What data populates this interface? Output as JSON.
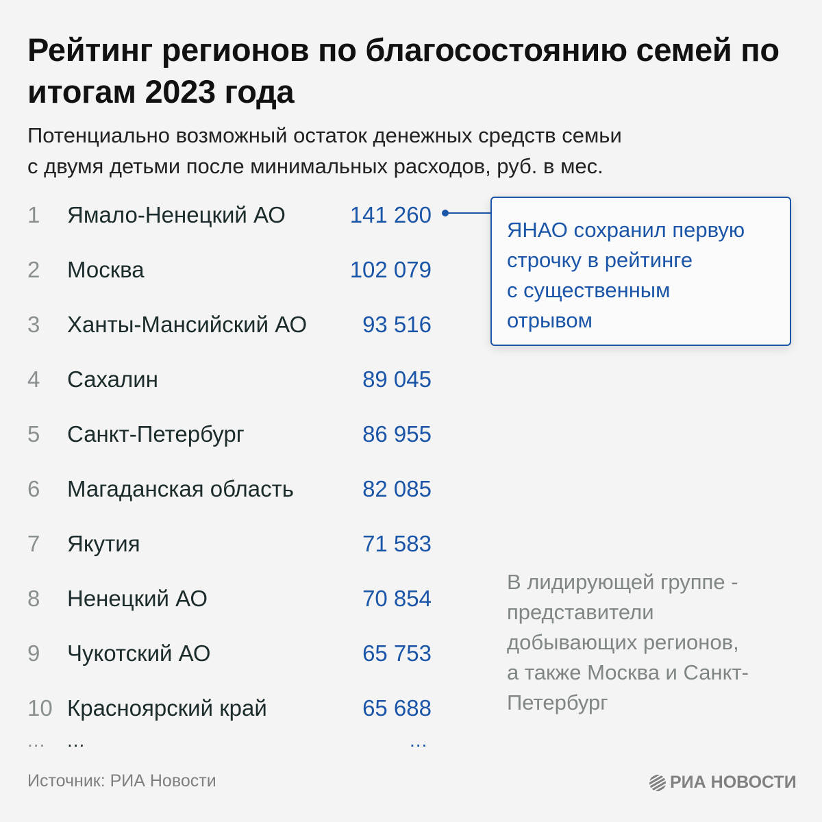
{
  "title": "Рейтинг регионов по благосостоянию семей по итогам 2023 года",
  "subtitle_line1": "Потенциально возможный остаток денежных средств семьи",
  "subtitle_line2": "с двумя детьми после минимальных расходов, руб. в мес.",
  "chart_data": {
    "type": "table",
    "title": "Рейтинг регионов по благосостоянию семей по итогам 2023 года",
    "unit": "руб. в мес.",
    "rows": [
      {
        "rank": "1",
        "region": "Ямало-Ненецкий АО",
        "value": "141 260"
      },
      {
        "rank": "2",
        "region": "Москва",
        "value": "102 079"
      },
      {
        "rank": "3",
        "region": "Ханты-Мансийский АО",
        "value": "93 516"
      },
      {
        "rank": "4",
        "region": "Сахалин",
        "value": "89 045"
      },
      {
        "rank": "5",
        "region": "Санкт-Петербург",
        "value": "86 955"
      },
      {
        "rank": "6",
        "region": "Магаданская область",
        "value": "82 085"
      },
      {
        "rank": "7",
        "region": "Якутия",
        "value": "71 583"
      },
      {
        "rank": "8",
        "region": "Ненецкий АО",
        "value": "70 854"
      },
      {
        "rank": "9",
        "region": "Чукотский АО",
        "value": "65 753"
      },
      {
        "rank": "10",
        "region": "Красноярский край",
        "value": "65 688"
      }
    ],
    "ellipsis": "..."
  },
  "callout_lines": [
    "ЯНАО сохранил первую",
    "строчку в рейтинге",
    "с существенным",
    "отрывом"
  ],
  "note_lines": [
    "В лидирующей группе -",
    "представители",
    "добывающих регионов,",
    "а также Москва и Санкт-",
    "Петербург"
  ],
  "source": "Источник: РИА Новости",
  "logo_text": "РИА НОВОСТИ",
  "colors": {
    "accent": "#1a55a8",
    "background": "#f4f4f4",
    "muted": "#808585"
  }
}
